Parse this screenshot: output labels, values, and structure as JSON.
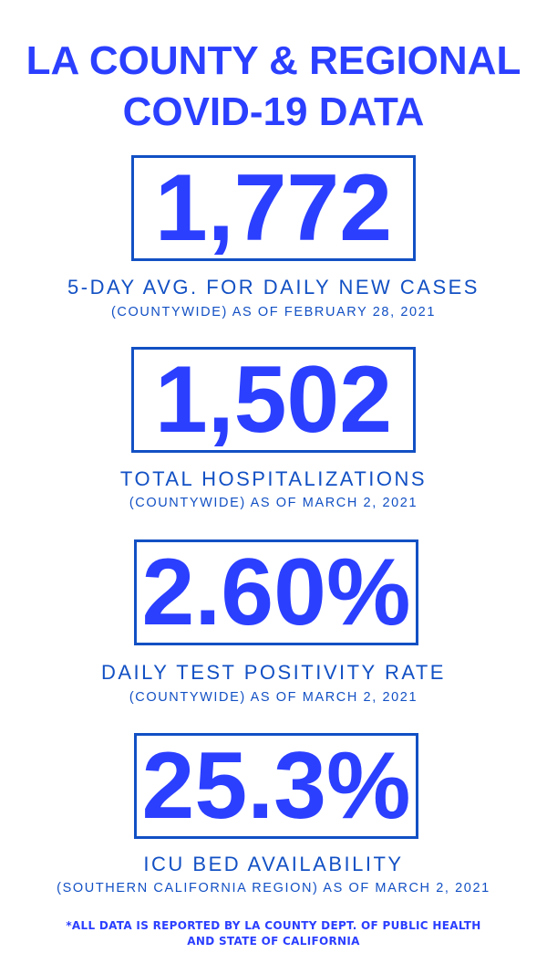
{
  "title": {
    "line1": "LA COUNTY & REGIONAL",
    "line2": "COVID-19 DATA"
  },
  "colors": {
    "accent": "#2b3fff",
    "secondary": "#1250c4",
    "background": "#ffffff"
  },
  "stats": [
    {
      "value": "1,772",
      "label": "5-DAY AVG. FOR DAILY NEW CASES",
      "sub": "(COUNTYWIDE) AS OF FEBRUARY 28, 2021"
    },
    {
      "value": "1,502",
      "label": "TOTAL HOSPITALIZATIONS",
      "sub": "(COUNTYWIDE) AS OF MARCH 2, 2021"
    },
    {
      "value": "2.60%",
      "label": "DAILY TEST POSITIVITY RATE",
      "sub": "(COUNTYWIDE) AS OF MARCH 2, 2021"
    },
    {
      "value": "25.3%",
      "label": "ICU BED AVAILABILITY",
      "sub": "(SOUTHERN CALIFORNIA REGION) AS OF MARCH 2, 2021"
    }
  ],
  "footnote": {
    "line1": "*ALL DATA IS REPORTED BY LA COUNTY DEPT. OF PUBLIC HEALTH",
    "line2": "AND STATE OF CALIFORNIA"
  }
}
